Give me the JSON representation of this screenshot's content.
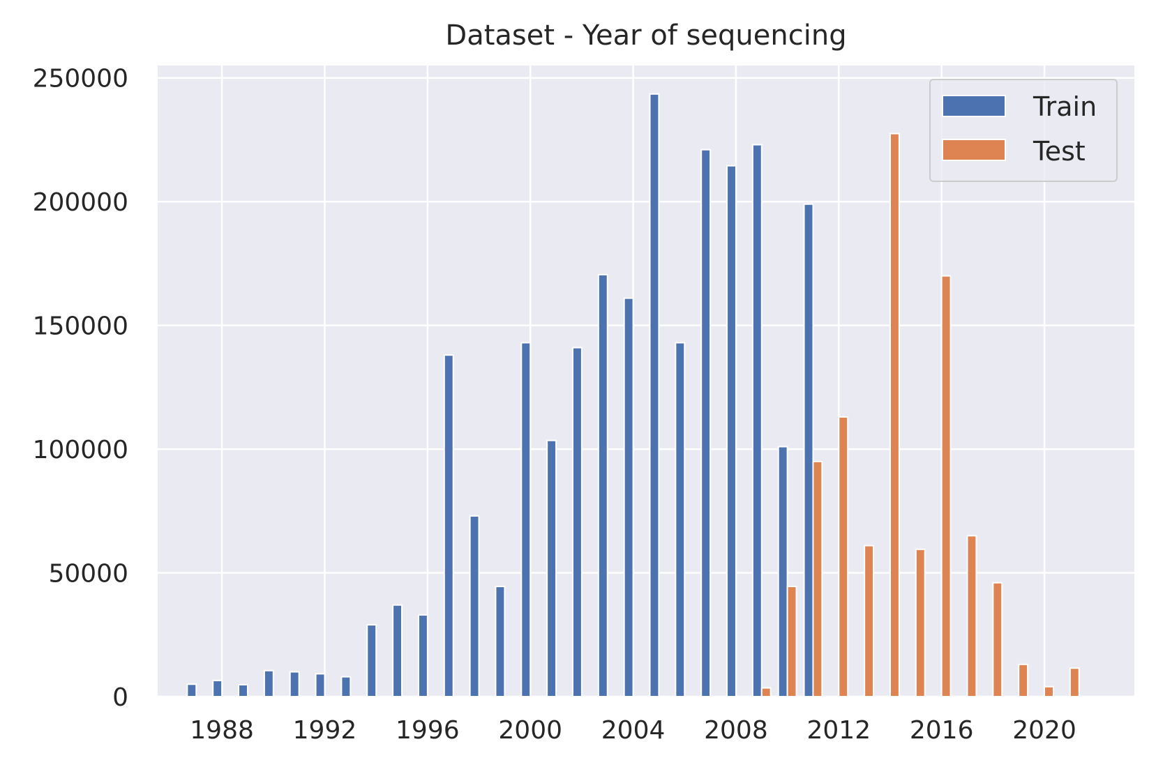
{
  "chart_data": {
    "type": "bar",
    "title": "Dataset - Year of sequencing",
    "xlabel": "",
    "ylabel": "",
    "xlim": [
      1985.5,
      2023.5
    ],
    "ylim": [
      0,
      255000
    ],
    "x_ticks": [
      1988,
      1992,
      1996,
      2000,
      2004,
      2008,
      2012,
      2016,
      2020
    ],
    "x_tick_labels": [
      "1988",
      "1992",
      "1996",
      "2000",
      "2004",
      "2008",
      "2012",
      "2016",
      "2020"
    ],
    "y_ticks": [
      0,
      50000,
      100000,
      150000,
      200000,
      250000
    ],
    "y_tick_labels": [
      "0",
      "50000",
      "100000",
      "150000",
      "200000",
      "250000"
    ],
    "grid": true,
    "legend_position": "top-right",
    "series": [
      {
        "name": "Train",
        "color": "#4c72b0",
        "x": [
          1987,
          1988,
          1989,
          1990,
          1991,
          1992,
          1993,
          1994,
          1995,
          1996,
          1997,
          1998,
          1999,
          2000,
          2001,
          2002,
          2003,
          2004,
          2005,
          2006,
          2007,
          2008,
          2009,
          2010,
          2011
        ],
        "values": [
          5000,
          6500,
          4800,
          10500,
          10000,
          9200,
          8000,
          29000,
          37000,
          33000,
          138000,
          73000,
          44500,
          143000,
          103500,
          141000,
          170500,
          161000,
          243500,
          143000,
          221000,
          214500,
          223000,
          101000,
          199000
        ]
      },
      {
        "name": "Test",
        "color": "#dd8452",
        "x": [
          2009,
          2010,
          2011,
          2012,
          2013,
          2014,
          2015,
          2016,
          2017,
          2018,
          2019,
          2020,
          2021
        ],
        "values": [
          3500,
          44500,
          95000,
          113000,
          61000,
          227500,
          59500,
          170000,
          65000,
          46000,
          13000,
          4000,
          11500
        ]
      }
    ]
  }
}
